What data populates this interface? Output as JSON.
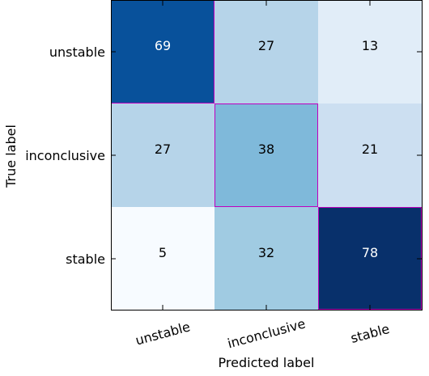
{
  "chart_data": {
    "type": "heatmap",
    "title": "",
    "xlabel": "Predicted label",
    "ylabel": "True label",
    "x_categories": [
      "unstable",
      "inconclusive",
      "stable"
    ],
    "y_categories": [
      "unstable",
      "inconclusive",
      "stable"
    ],
    "values": [
      [
        69,
        27,
        13
      ],
      [
        27,
        38,
        21
      ],
      [
        5,
        32,
        78
      ]
    ],
    "colormap": "Blues",
    "color_range": [
      5,
      78
    ],
    "diagonal_highlight_color": "#bf00bf",
    "grid": false
  }
}
